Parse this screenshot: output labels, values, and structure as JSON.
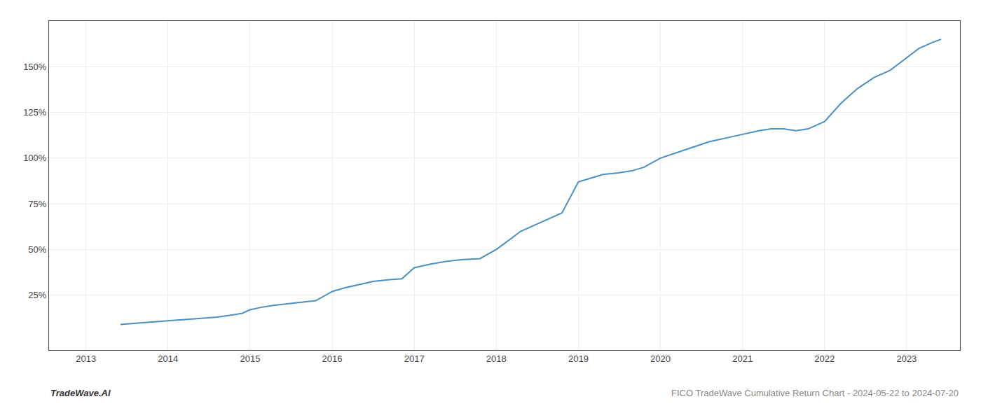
{
  "chart_data": {
    "type": "line",
    "title": "FICO TradeWave Cumulative Return Chart - 2024-05-22 to 2024-07-20",
    "annotations": [
      "TradeWave.AI"
    ],
    "x": [
      2013.42,
      2013.55,
      2013.7,
      2013.85,
      2014.0,
      2014.15,
      2014.3,
      2014.45,
      2014.6,
      2014.75,
      2014.9,
      2015.0,
      2015.15,
      2015.3,
      2015.5,
      2015.65,
      2015.8,
      2016.0,
      2016.15,
      2016.35,
      2016.5,
      2016.7,
      2016.85,
      2017.0,
      2017.2,
      2017.4,
      2017.6,
      2017.8,
      2018.0,
      2018.15,
      2018.3,
      2018.5,
      2018.65,
      2018.8,
      2019.0,
      2019.15,
      2019.3,
      2019.5,
      2019.65,
      2019.8,
      2020.0,
      2020.2,
      2020.4,
      2020.6,
      2020.8,
      2021.0,
      2021.2,
      2021.35,
      2021.5,
      2021.65,
      2021.8,
      2022.0,
      2022.2,
      2022.4,
      2022.6,
      2022.8,
      2023.0,
      2023.15,
      2023.3,
      2023.42
    ],
    "values": [
      9,
      9.5,
      10,
      10.5,
      11,
      11.5,
      12,
      12.5,
      13,
      14,
      15,
      17,
      18.5,
      19.5,
      20.5,
      21,
      22,
      27,
      29,
      31,
      32.5,
      33.5,
      34,
      40,
      42,
      43.5,
      44.5,
      45,
      50,
      55,
      60,
      64,
      67,
      70,
      87,
      89,
      91,
      92,
      93,
      95,
      100,
      103,
      106,
      109,
      111,
      113,
      115,
      116,
      116,
      115,
      116,
      120,
      130,
      138,
      144,
      148,
      155,
      160,
      163,
      165
    ],
    "color": "#4a90c4",
    "xlim": [
      2012.55,
      2023.65
    ],
    "xticks": [
      2013,
      2014,
      2015,
      2016,
      2017,
      2018,
      2019,
      2020,
      2021,
      2022,
      2023
    ],
    "ylim": [
      -5,
      175
    ],
    "yticks": [
      {
        "value": 25,
        "label": "25%"
      },
      {
        "value": 50,
        "label": "50%"
      },
      {
        "value": 75,
        "label": "75%"
      },
      {
        "value": 100,
        "label": "100%"
      },
      {
        "value": 125,
        "label": "125%"
      },
      {
        "value": 150,
        "label": "150%"
      }
    ],
    "grid": true
  }
}
